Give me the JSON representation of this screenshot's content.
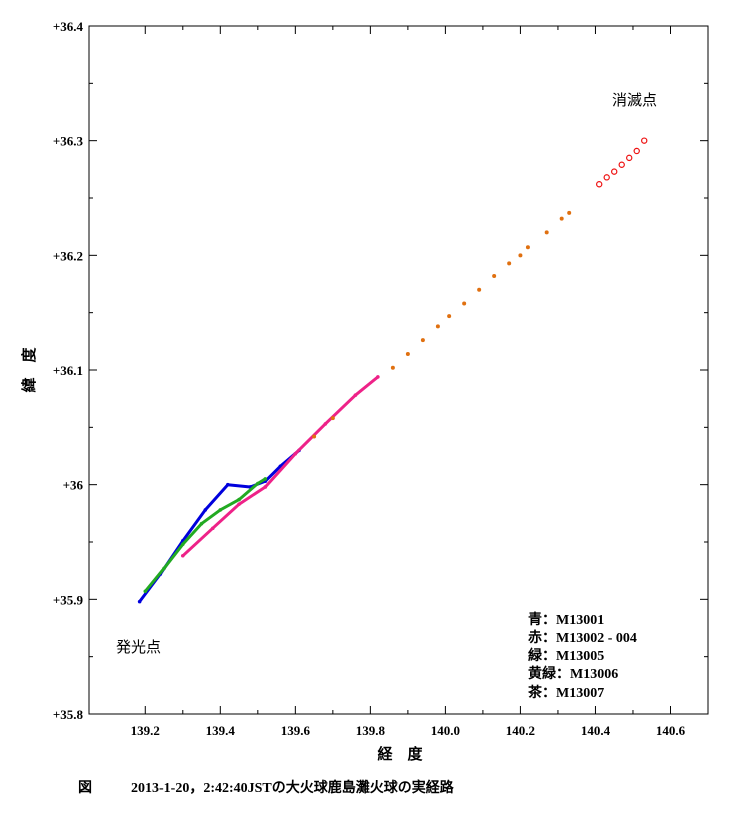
{
  "chart_data": {
    "type": "scatter",
    "title": "",
    "xlabel": "経　度",
    "ylabel": "緯　度",
    "xlim": [
      139.05,
      140.7
    ],
    "ylim": [
      35.8,
      36.4
    ],
    "xticks": [
      {
        "value": 139.2,
        "label": "139.2"
      },
      {
        "value": 139.4,
        "label": "139.4"
      },
      {
        "value": 139.6,
        "label": "139.6"
      },
      {
        "value": 139.8,
        "label": "139.8"
      },
      {
        "value": 140.0,
        "label": "140.0"
      },
      {
        "value": 140.2,
        "label": "140.2"
      },
      {
        "value": 140.4,
        "label": "140.4"
      },
      {
        "value": 140.6,
        "label": "140.6"
      }
    ],
    "yticks": [
      {
        "value": 35.8,
        "label": "+35.8"
      },
      {
        "value": 35.9,
        "label": "+35.9"
      },
      {
        "value": 36.0,
        "label": "+36"
      },
      {
        "value": 36.1,
        "label": "+36.1"
      },
      {
        "value": 36.2,
        "label": "+36.2"
      },
      {
        "value": 36.3,
        "label": "+36.3"
      },
      {
        "value": 36.4,
        "label": "+36.4"
      }
    ],
    "grid": false,
    "legend": [
      "青：M13001",
      "赤：M13002 - 004",
      "緑：M13005",
      "黄緑：M13006",
      "茶：M13007"
    ],
    "annotations": [
      {
        "text": "消滅点",
        "x": 140.5,
        "y": 36.335
      },
      {
        "text": "発光点",
        "x": 139.15,
        "y": 35.88
      }
    ],
    "series": [
      {
        "color": "#0000dd",
        "marker": "segment",
        "points": [
          [
            139.185,
            35.898
          ],
          [
            139.24,
            35.922
          ],
          [
            139.3,
            35.951
          ],
          [
            139.36,
            35.978
          ],
          [
            139.42,
            36.0
          ],
          [
            139.48,
            35.998
          ],
          [
            139.52,
            36.003
          ],
          [
            139.56,
            36.016
          ],
          [
            139.61,
            36.03
          ]
        ]
      },
      {
        "color": "#22aa22",
        "marker": "segment",
        "points": [
          [
            139.2,
            35.907
          ],
          [
            139.25,
            35.927
          ],
          [
            139.3,
            35.948
          ],
          [
            139.35,
            35.966
          ],
          [
            139.4,
            35.978
          ],
          [
            139.45,
            35.987
          ],
          [
            139.5,
            36.001
          ],
          [
            139.52,
            36.005
          ]
        ]
      },
      {
        "color": "#ee2288",
        "marker": "segment",
        "points": [
          [
            139.3,
            35.938
          ],
          [
            139.38,
            35.962
          ],
          [
            139.45,
            35.983
          ],
          [
            139.52,
            35.998
          ],
          [
            139.6,
            36.027
          ],
          [
            139.68,
            36.053
          ],
          [
            139.76,
            36.078
          ],
          [
            139.82,
            36.094
          ]
        ]
      },
      {
        "color": "#e07010",
        "marker": "dot",
        "points": [
          [
            139.65,
            36.042
          ],
          [
            139.7,
            36.058
          ],
          [
            139.86,
            36.102
          ],
          [
            139.9,
            36.114
          ],
          [
            139.94,
            36.126
          ],
          [
            139.98,
            36.138
          ],
          [
            140.01,
            36.147
          ],
          [
            140.05,
            36.158
          ],
          [
            140.09,
            36.17
          ],
          [
            140.13,
            36.182
          ],
          [
            140.17,
            36.193
          ],
          [
            140.2,
            36.2
          ],
          [
            140.22,
            36.207
          ],
          [
            140.27,
            36.22
          ],
          [
            140.31,
            36.232
          ],
          [
            140.33,
            36.237
          ]
        ]
      },
      {
        "color": "#ee1111",
        "marker": "circle",
        "points": [
          [
            140.41,
            36.262
          ],
          [
            140.43,
            36.268
          ],
          [
            140.45,
            36.273
          ],
          [
            140.47,
            36.279
          ],
          [
            140.49,
            36.285
          ],
          [
            140.51,
            36.291
          ],
          [
            140.53,
            36.3
          ]
        ]
      }
    ]
  },
  "caption": {
    "label": "図",
    "text": "2013-1-20，2:42:40JSTの大火球鹿島灘火球の実経路"
  }
}
